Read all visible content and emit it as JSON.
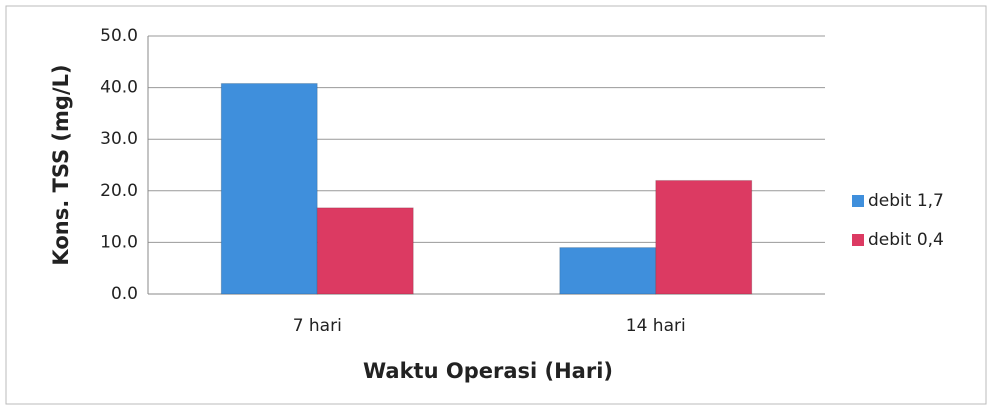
{
  "chart_data": {
    "type": "bar",
    "categories": [
      "7 hari",
      "14 hari"
    ],
    "series": [
      {
        "name": "debit 1,7",
        "color": "#3f8fdc",
        "values": [
          40.8,
          9.0
        ]
      },
      {
        "name": "debit 0,4",
        "color": "#dc3a62",
        "values": [
          16.7,
          22.0
        ]
      }
    ],
    "x_label": "Waktu Operasi (Hari)",
    "y_label": "Kons. TSS (mg/L)",
    "ylim": [
      0,
      50
    ],
    "yticks": [
      {
        "value": 0,
        "label": "0.0"
      },
      {
        "value": 10,
        "label": "10.0"
      },
      {
        "value": 20,
        "label": "20.0"
      },
      {
        "value": 30,
        "label": "30.0"
      },
      {
        "value": 40,
        "label": "40.0"
      },
      {
        "value": 50,
        "label": "50.0"
      }
    ],
    "grid": true,
    "legend": "right"
  }
}
